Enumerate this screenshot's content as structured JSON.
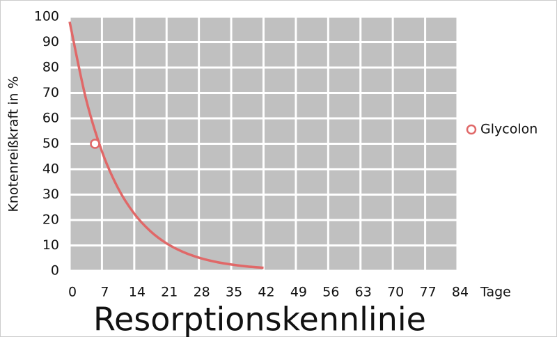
{
  "chart_data": {
    "type": "line",
    "title": "Resorptionskennlinie",
    "y_label": "Knotenreißkraft in %",
    "x_label": "Tage",
    "xlim": [
      0,
      84
    ],
    "xticks": [
      0,
      7,
      14,
      21,
      28,
      35,
      42,
      49,
      56,
      63,
      70,
      77,
      84
    ],
    "ylim": [
      0,
      100
    ],
    "yticks": [
      0,
      10,
      20,
      30,
      40,
      50,
      60,
      70,
      80,
      90,
      100
    ],
    "grid": true,
    "legend": "right",
    "series": [
      {
        "name": "Glycolon",
        "color": "#e06868",
        "x": [
          0,
          3.5,
          7,
          10.5,
          14,
          17.5,
          21,
          24.5,
          28,
          31.5,
          35,
          38.5,
          42
        ],
        "values": [
          98,
          68,
          47,
          32.5,
          22.5,
          15.6,
          10.8,
          7.5,
          5.2,
          3.6,
          2.5,
          1.7,
          1.2
        ],
        "markers": {
          "x": [
            5.5
          ],
          "values": [
            50
          ]
        }
      }
    ]
  }
}
